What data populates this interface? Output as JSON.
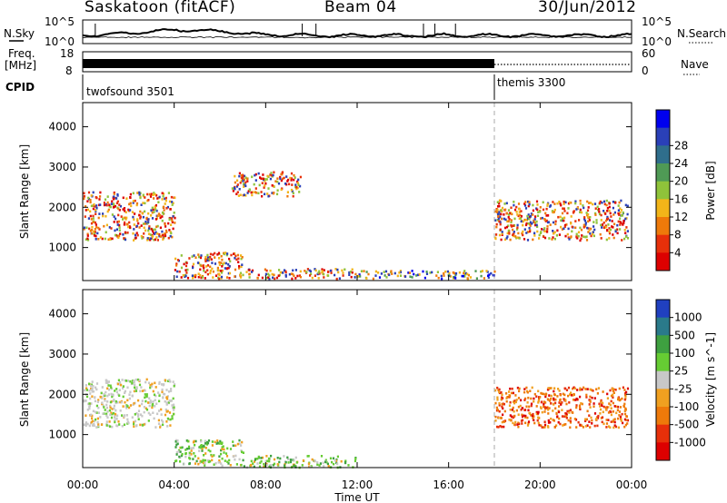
{
  "header": {
    "station": "Saskatoon (fitACF)",
    "beam": "Beam 04",
    "date": "30/Jun/2012"
  },
  "strips": {
    "nsky_label": "N.Sky",
    "nsky_ticks": [
      "10^5",
      "10^0"
    ],
    "nsearch_label": "N.Search",
    "nsearch_ticks": [
      "10^5",
      "10^0"
    ],
    "freq_label": "Freq.",
    "freq_unit": "[MHz]",
    "freq_ticks": [
      "18",
      "8"
    ],
    "nave_label": "Nave",
    "nave_ticks": [
      "60",
      "0"
    ],
    "cpid_label": "CPID",
    "cpid_segments": [
      {
        "name": "twofsound 3501",
        "start_hour": 0,
        "end_hour": 18
      },
      {
        "name": "themis 3300",
        "start_hour": 18,
        "end_hour": 24
      }
    ]
  },
  "chart_data": [
    {
      "type": "heatmap",
      "name": "power",
      "ylabel": "Slant Range [km]",
      "yticks": [
        1000,
        2000,
        3000,
        4000
      ],
      "ylim": [
        180,
        4600
      ],
      "xlim": [
        0,
        24
      ],
      "x_tick_hours": [
        0,
        4,
        8,
        12,
        16,
        20,
        24
      ],
      "x_tick_labels": [
        "00:00",
        "04:00",
        "08:00",
        "12:00",
        "16:00",
        "20:00",
        "00:00"
      ],
      "colorbar": {
        "label": "Power [dB]",
        "tick_labels": [
          "4",
          "8",
          "12",
          "16",
          "20",
          "24",
          "28"
        ],
        "colors": [
          "#0000ee",
          "#2a40b8",
          "#2f6e8c",
          "#4f9a55",
          "#8fc33a",
          "#f2b519",
          "#ee7a0a",
          "#e7300a",
          "#dd0000"
        ]
      },
      "echo_bands": [
        {
          "hour_range": [
            0.0,
            4.0
          ],
          "range_km": [
            1200,
            2400
          ],
          "level": "high"
        },
        {
          "hour_range": [
            4.0,
            7.0
          ],
          "range_km": [
            250,
            900
          ],
          "level": "high"
        },
        {
          "hour_range": [
            6.5,
            9.5
          ],
          "range_km": [
            2300,
            2900
          ],
          "level": "high"
        },
        {
          "hour_range": [
            7.0,
            12.0
          ],
          "range_km": [
            250,
            500
          ],
          "level": "high"
        },
        {
          "hour_range": [
            12.0,
            18.0
          ],
          "range_km": [
            250,
            450
          ],
          "level": "medium"
        },
        {
          "hour_range": [
            18.0,
            23.8
          ],
          "range_km": [
            1200,
            2200
          ],
          "level": "high"
        }
      ]
    },
    {
      "type": "heatmap",
      "name": "velocity",
      "ylabel": "Slant Range [km]",
      "yticks": [
        1000,
        2000,
        3000,
        4000
      ],
      "ylim": [
        180,
        4600
      ],
      "xlim": [
        0,
        24
      ],
      "xlabel": "Time UT",
      "x_tick_hours": [
        0,
        4,
        8,
        12,
        16,
        20,
        24
      ],
      "x_tick_labels": [
        "00:00",
        "04:00",
        "08:00",
        "12:00",
        "16:00",
        "20:00",
        "00:00"
      ],
      "colorbar": {
        "label": "Velocity [m s^-1]",
        "tick_labels": [
          "1000",
          "500",
          "100",
          "25",
          "-25",
          "-100",
          "-500",
          "-1000"
        ],
        "colors": [
          "#2040c0",
          "#2a7a8a",
          "#3ea040",
          "#66cc33",
          "#c8c8c8",
          "#f0a020",
          "#ee7a0a",
          "#e7300a",
          "#dd0000"
        ]
      },
      "echo_bands": [
        {
          "hour_range": [
            0.0,
            4.0
          ],
          "range_km": [
            1200,
            2400
          ],
          "level": "near-zero"
        },
        {
          "hour_range": [
            4.0,
            7.0
          ],
          "range_km": [
            250,
            900
          ],
          "level": "toward"
        },
        {
          "hour_range": [
            7.0,
            12.0
          ],
          "range_km": [
            200,
            500
          ],
          "level": "toward"
        },
        {
          "hour_range": [
            18.0,
            23.8
          ],
          "range_km": [
            1200,
            2200
          ],
          "level": "away"
        }
      ]
    }
  ]
}
